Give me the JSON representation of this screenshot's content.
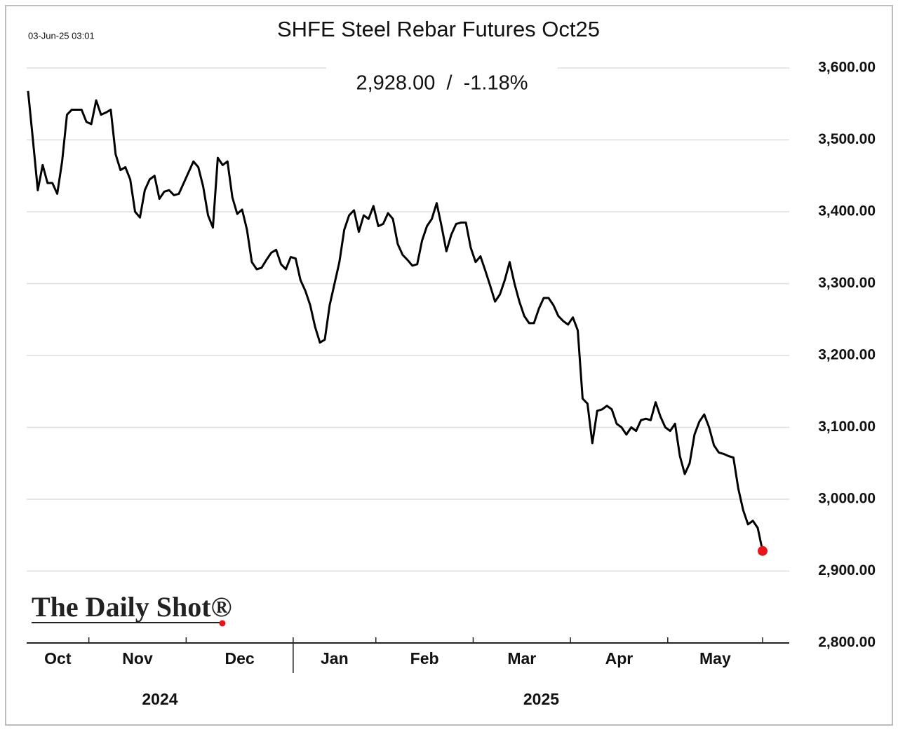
{
  "chart_data": {
    "type": "line",
    "title": "SHFE Steel Rebar Futures Oct25",
    "subtitle": "2,928.00  /  -1.18%",
    "timestamp": "03-Jun-25 03:01",
    "watermark": "The Daily Shot®",
    "color": "#000000",
    "marker_color": "#e8141b",
    "grid": true,
    "years": [
      "2024",
      "2025"
    ],
    "categories": [
      "Oct",
      null,
      null,
      null,
      null,
      null,
      null,
      null,
      null,
      null,
      null,
      null,
      null,
      "Nov",
      null,
      null,
      null,
      null,
      null,
      null,
      null,
      null,
      null,
      null,
      null,
      null,
      null,
      null,
      null,
      null,
      null,
      null,
      null,
      "Dec",
      null,
      null,
      null,
      null,
      null,
      null,
      null,
      null,
      null,
      null,
      null,
      null,
      null,
      null,
      null,
      null,
      null,
      null,
      null,
      null,
      null,
      "Jan",
      null,
      null,
      null,
      null,
      null,
      null,
      null,
      null,
      null,
      null,
      null,
      null,
      null,
      null,
      null,
      null,
      "Feb",
      null,
      null,
      null,
      null,
      null,
      null,
      null,
      null,
      null,
      null,
      null,
      null,
      null,
      null,
      null,
      null,
      null,
      null,
      null,
      "Mar",
      null,
      null,
      null,
      null,
      null,
      null,
      null,
      null,
      null,
      null,
      null,
      null,
      null,
      null,
      null,
      null,
      null,
      null,
      null,
      "Apr",
      null,
      null,
      null,
      null,
      null,
      null,
      null,
      null,
      null,
      null,
      null,
      null,
      null,
      null,
      null,
      null,
      null,
      null,
      null,
      "May",
      null,
      null,
      null,
      null,
      null,
      null,
      null,
      null,
      null,
      null,
      null,
      null,
      null,
      null,
      null,
      null,
      null,
      null,
      null
    ],
    "values": [
      3568,
      3500,
      3430,
      3465,
      3440,
      3440,
      3425,
      3470,
      3535,
      3542,
      3542,
      3542,
      3525,
      3522,
      3555,
      3535,
      3538,
      3542,
      3480,
      3458,
      3462,
      3445,
      3400,
      3392,
      3430,
      3445,
      3450,
      3418,
      3428,
      3430,
      3423,
      3425,
      3440,
      3455,
      3470,
      3462,
      3435,
      3395,
      3378,
      3475,
      3465,
      3470,
      3420,
      3397,
      3403,
      3375,
      3330,
      3320,
      3322,
      3333,
      3343,
      3347,
      3327,
      3320,
      3337,
      3335,
      3305,
      3290,
      3270,
      3240,
      3218,
      3222,
      3270,
      3300,
      3330,
      3375,
      3395,
      3402,
      3372,
      3395,
      3390,
      3408,
      3380,
      3383,
      3398,
      3390,
      3355,
      3340,
      3333,
      3325,
      3327,
      3360,
      3380,
      3390,
      3412,
      3380,
      3345,
      3368,
      3383,
      3385,
      3385,
      3350,
      3330,
      3338,
      3318,
      3297,
      3275,
      3285,
      3305,
      3330,
      3300,
      3275,
      3255,
      3245,
      3245,
      3265,
      3280,
      3280,
      3270,
      3255,
      3248,
      3243,
      3253,
      3235,
      3140,
      3133,
      3078,
      3123,
      3125,
      3130,
      3125,
      3105,
      3100,
      3090,
      3100,
      3095,
      3110,
      3112,
      3110,
      3135,
      3115,
      3100,
      3095,
      3105,
      3060,
      3035,
      3050,
      3090,
      3108,
      3118,
      3100,
      3075,
      3065,
      3063,
      3060,
      3058,
      3015,
      2985,
      2965,
      2970,
      2960,
      2928
    ],
    "ylim": [
      2800,
      3600
    ],
    "yticks": [
      {
        "value": 2800,
        "label": "2,800.00"
      },
      {
        "value": 2900,
        "label": "2,900.00"
      },
      {
        "value": 3000,
        "label": "3,000.00"
      },
      {
        "value": 3100,
        "label": "3,100.00"
      },
      {
        "value": 3200,
        "label": "3,200.00"
      },
      {
        "value": 3300,
        "label": "3,300.00"
      },
      {
        "value": 3400,
        "label": "3,400.00"
      },
      {
        "value": 3500,
        "label": "3,500.00"
      },
      {
        "value": 3600,
        "label": "3,600.00"
      }
    ]
  }
}
